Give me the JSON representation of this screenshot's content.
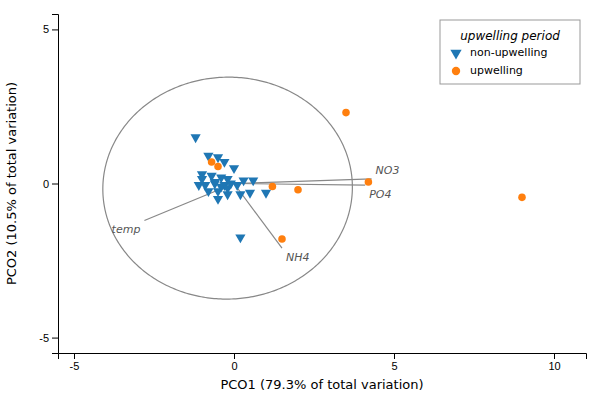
{
  "chart_data": {
    "type": "scatter",
    "xlabel": "PCO1 (79.3% of total variation)",
    "ylabel": "PCO2 (10.5% of total variation)",
    "xlim": [
      -5.5,
      11.0
    ],
    "ylim": [
      -5.5,
      5.5
    ],
    "xticks": [
      -5,
      0,
      5,
      10
    ],
    "yticks": [
      -5,
      0,
      5
    ],
    "legend": "upper right",
    "legend_title": "upwelling period",
    "series": [
      {
        "name": "non-upwelling",
        "marker": "triangle-down",
        "x": [
          -1.2,
          -0.8,
          -0.5,
          -0.3,
          -1.0,
          -0.7,
          -0.4,
          -0.2,
          -1.1,
          -0.9,
          -0.6,
          -0.3,
          -0.1,
          0.1,
          -0.5,
          -0.8,
          -0.2,
          0.2,
          -0.5,
          0.5,
          -0.4,
          0.3,
          -0.6,
          0.0,
          1.0,
          0.6,
          -1.0,
          -0.2,
          0.2
        ],
        "values": [
          1.5,
          0.9,
          0.85,
          0.7,
          0.3,
          0.25,
          0.2,
          0.15,
          -0.05,
          -0.05,
          0.0,
          -0.05,
          0.0,
          -0.05,
          -0.25,
          -0.25,
          -0.35,
          -0.35,
          -0.5,
          -0.3,
          -0.1,
          0.1,
          0.05,
          0.5,
          -0.3,
          0.1,
          0.15,
          -0.15,
          -1.75
        ]
      },
      {
        "name": "upwelling",
        "marker": "circle",
        "x": [
          -0.7,
          -0.5,
          2.0,
          1.2,
          3.5,
          4.2,
          1.5,
          9.0
        ],
        "values": [
          0.7,
          0.55,
          -0.2,
          -0.1,
          2.3,
          0.05,
          -1.8,
          -0.45
        ]
      }
    ],
    "vectors": [
      {
        "label": "NO3",
        "x": 4.3,
        "y": 0.15
      },
      {
        "label": "PO4",
        "x": 4.1,
        "y": -0.05
      },
      {
        "label": "NH4",
        "x": 1.5,
        "y": -2.1
      },
      {
        "label": "temp",
        "x": -2.8,
        "y": -1.2
      }
    ],
    "ellipse": {
      "center": [
        -0.2,
        -0.15
      ],
      "width": 7.8,
      "height": 7.2,
      "angle": 3
    }
  }
}
